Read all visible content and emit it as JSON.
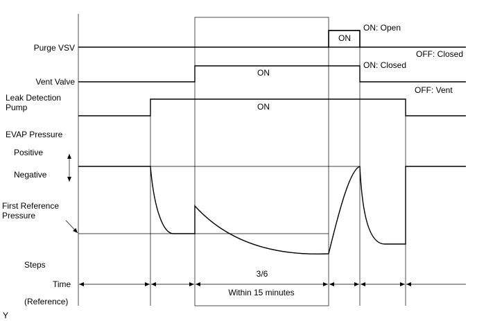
{
  "signals": {
    "purge_vsv": "Purge VSV",
    "vent_valve": "Vent Valve",
    "pump": [
      "Leak Detection",
      "Pump"
    ],
    "evap_pressure": "EVAP Pressure",
    "positive": "Positive",
    "negative": "Negative",
    "first_reference": [
      "First Reference",
      "Pressure"
    ],
    "steps": "Steps",
    "time": "Time",
    "reference": "(Reference)"
  },
  "states": {
    "purge_on": "ON",
    "purge_on_note": "ON: Open",
    "purge_off_note": "OFF: Closed",
    "vent_on": "ON",
    "vent_on_note": "ON: Closed",
    "pump_on": "ON",
    "pump_off_note": "OFF: Vent"
  },
  "steps": {
    "step": "3/6",
    "duration": "Within 15 minutes"
  },
  "footer": "Y"
}
